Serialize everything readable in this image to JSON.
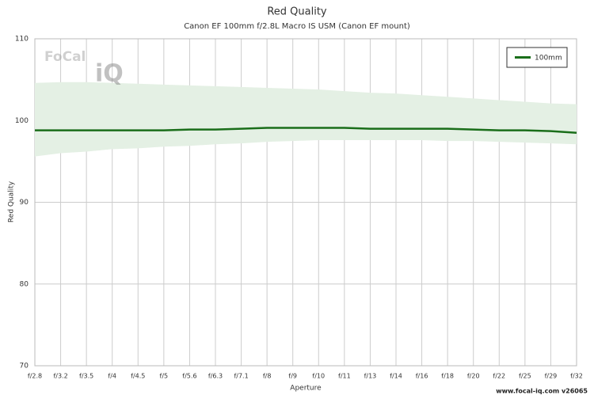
{
  "chart_data": {
    "type": "line",
    "title": "Red Quality",
    "subtitle": "Canon EF 100mm f/2.8L Macro IS USM (Canon EF mount)",
    "xlabel": "Aperture",
    "ylabel": "Red Quality",
    "categories": [
      "f/2.8",
      "f/3.2",
      "f/3.5",
      "f/4",
      "f/4.5",
      "f/5",
      "f/5.6",
      "f/6.3",
      "f/7.1",
      "f/8",
      "f/9",
      "f/10",
      "f/11",
      "f/13",
      "f/14",
      "f/16",
      "f/18",
      "f/20",
      "f/22",
      "f/25",
      "f/29",
      "f/32"
    ],
    "series": [
      {
        "name": "100mm",
        "color": "#1a6e1a",
        "band_color": "#e4f0e4",
        "values": [
          98.8,
          98.8,
          98.8,
          98.8,
          98.8,
          98.8,
          98.9,
          98.9,
          99.0,
          99.1,
          99.1,
          99.1,
          99.1,
          99.0,
          99.0,
          99.0,
          99.0,
          98.9,
          98.8,
          98.8,
          98.7,
          98.5
        ],
        "upper": [
          104.6,
          104.7,
          104.7,
          104.6,
          104.5,
          104.4,
          104.3,
          104.2,
          104.1,
          104.0,
          103.9,
          103.8,
          103.6,
          103.4,
          103.3,
          103.1,
          102.9,
          102.7,
          102.5,
          102.3,
          102.1,
          102.0
        ],
        "lower": [
          95.6,
          96.0,
          96.2,
          96.5,
          96.6,
          96.8,
          96.9,
          97.1,
          97.2,
          97.4,
          97.5,
          97.6,
          97.6,
          97.6,
          97.6,
          97.6,
          97.5,
          97.5,
          97.4,
          97.3,
          97.2,
          97.1
        ]
      }
    ],
    "ylim": [
      70,
      110
    ],
    "yticks": [
      70,
      80,
      90,
      100,
      110
    ],
    "grid": true,
    "legend": "top-right",
    "logo": {
      "left": "FoCal",
      "right": "iQ"
    },
    "footer": "www.focal-iq.com  v26065"
  }
}
